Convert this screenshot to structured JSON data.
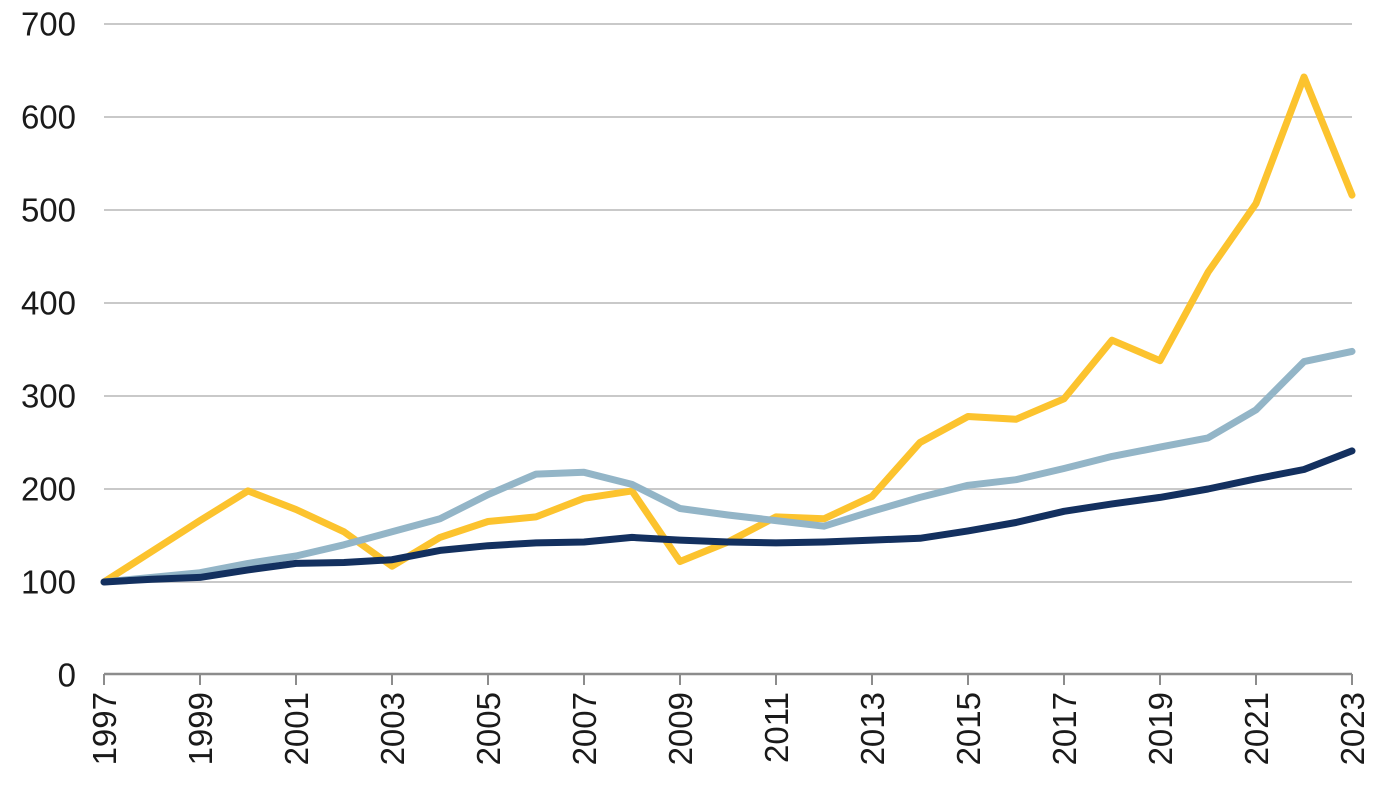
{
  "chart_data": {
    "type": "line",
    "title": "",
    "xlabel": "",
    "ylabel": "",
    "legend": "none",
    "grid": "horizontal",
    "x": [
      1997,
      1998,
      1999,
      2000,
      2001,
      2002,
      2003,
      2004,
      2005,
      2006,
      2007,
      2008,
      2009,
      2010,
      2011,
      2012,
      2013,
      2014,
      2015,
      2016,
      2017,
      2018,
      2019,
      2020,
      2021,
      2022,
      2023
    ],
    "series": [
      {
        "id": "series-gold",
        "color": "#FCC32E",
        "values": [
          100,
          133,
          166,
          198,
          178,
          154,
          117,
          148,
          165,
          170,
          190,
          198,
          122,
          143,
          170,
          168,
          192,
          250,
          278,
          275,
          297,
          360,
          338,
          433,
          507,
          643,
          516
        ]
      },
      {
        "id": "series-light-blue",
        "color": "#93B5C7",
        "values": [
          100,
          105,
          110,
          120,
          128,
          140,
          154,
          168,
          194,
          216,
          218,
          205,
          179,
          172,
          166,
          160,
          176,
          191,
          204,
          210,
          222,
          235,
          245,
          255,
          285,
          337,
          348
        ]
      },
      {
        "id": "series-navy",
        "color": "#13305F",
        "values": [
          100,
          103,
          105,
          113,
          120,
          121,
          124,
          134,
          139,
          142,
          143,
          148,
          145,
          143,
          142,
          143,
          145,
          147,
          155,
          164,
          176,
          184,
          191,
          200,
          211,
          221,
          241
        ]
      }
    ],
    "xlim": [
      1997,
      2023
    ],
    "ylim": [
      0,
      700
    ],
    "yticks": [
      0,
      100,
      200,
      300,
      400,
      500,
      600,
      700
    ],
    "ytick_labels": [
      "0",
      "100",
      "200",
      "300",
      "400",
      "500",
      "600",
      "700"
    ],
    "xticks": [
      1997,
      1999,
      2001,
      2003,
      2005,
      2007,
      2009,
      2011,
      2013,
      2015,
      2017,
      2019,
      2021,
      2023
    ],
    "xtick_labels": [
      "1997",
      "1999",
      "2001",
      "2003",
      "2005",
      "2007",
      "2009",
      "2011",
      "2013",
      "2015",
      "2017",
      "2019",
      "2021",
      "2023"
    ],
    "xtick_label_rotation_deg": -90
  },
  "colors": {
    "background": "#FFFFFF",
    "gridline": "#C9C9C9",
    "axis_line": "#8C8C8C",
    "tick_label": "#1A1A1A"
  }
}
